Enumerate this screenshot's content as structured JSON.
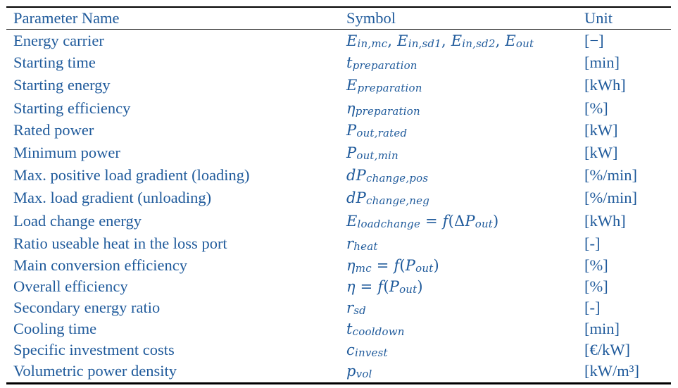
{
  "headers": {
    "name": "Parameter Name",
    "symbol": "Symbol",
    "unit": "Unit"
  },
  "rows": [
    {
      "name": "Energy carrier",
      "unit": "[−]",
      "h": 32
    },
    {
      "name": "Starting time",
      "unit": "[min]",
      "h": 31
    },
    {
      "name": "Starting energy",
      "unit": "[kWh]",
      "h": 33
    },
    {
      "name": "Starting efficiency",
      "unit": "[%]",
      "h": 32
    },
    {
      "name": "Rated power",
      "unit": "[kW]",
      "h": 31
    },
    {
      "name": "Minimum power",
      "unit": "[kW]",
      "h": 32
    },
    {
      "name": "Max. positive load gradient (loading)",
      "unit": "[%/min]",
      "h": 32
    },
    {
      "name": "Max. load gradient (unloading)",
      "unit": "[%/min]",
      "h": 32
    },
    {
      "name": "Load change energy",
      "unit": "[kWh]",
      "h": 34
    },
    {
      "name": "Ratio useable heat in the loss port",
      "unit": "[-]",
      "h": 31
    },
    {
      "name": "Main conversion efficiency",
      "unit": "[%]",
      "h": 30
    },
    {
      "name": "Overall efficiency",
      "unit": "[%]",
      "h": 30
    },
    {
      "name": "Secondary energy ratio",
      "unit": "[-]",
      "h": 30
    },
    {
      "name": "Cooling time",
      "unit": "[min]",
      "h": 30
    },
    {
      "name": "Specific investment costs",
      "unit": "[€/kW]",
      "h": 30
    },
    {
      "name": "Volumetric power density",
      "unit": "[kW/m³]",
      "h": 30
    }
  ],
  "symbols": {
    "s0": {
      "e": "E",
      "in_mc": "in,mc",
      "in_sd1": "in,sd1",
      "in_sd2": "in,sd2",
      "out": "out",
      "comma": ","
    },
    "s1": {
      "base": "t",
      "sub": "preparation"
    },
    "s2": {
      "base": "E",
      "sub": "preparation"
    },
    "s3": {
      "base": "η",
      "sub": "preparation"
    },
    "s4": {
      "base": "P",
      "sub": "out,rated"
    },
    "s5": {
      "base": "P",
      "sub": "out,min"
    },
    "s6": {
      "base": "dP",
      "sub": "change,pos"
    },
    "s7": {
      "base": "dP",
      "sub": "change,neg"
    },
    "s8": {
      "base": "E",
      "sub": "loadchange",
      "eq": " = ",
      "f": "f",
      "open": "(",
      "delta": "Δ",
      "p": "P",
      "psub": "out",
      "close": ")"
    },
    "s9": {
      "base": "r",
      "sub": "heat"
    },
    "s10": {
      "base": "η",
      "sub": "mc",
      "eq": " = ",
      "f": "f",
      "open": "(",
      "p": "P",
      "psub": "out",
      "close": ")"
    },
    "s11": {
      "base": "η",
      "eq": " = ",
      "f": "f",
      "open": "(",
      "p": "P",
      "psub": "out",
      "close": ")"
    },
    "s12": {
      "base": "r",
      "sub": "sd"
    },
    "s13": {
      "base": "t",
      "sub": "cooldown"
    },
    "s14": {
      "base": "c",
      "sub": "invest"
    },
    "s15": {
      "base": "p",
      "sub": "vol"
    }
  }
}
